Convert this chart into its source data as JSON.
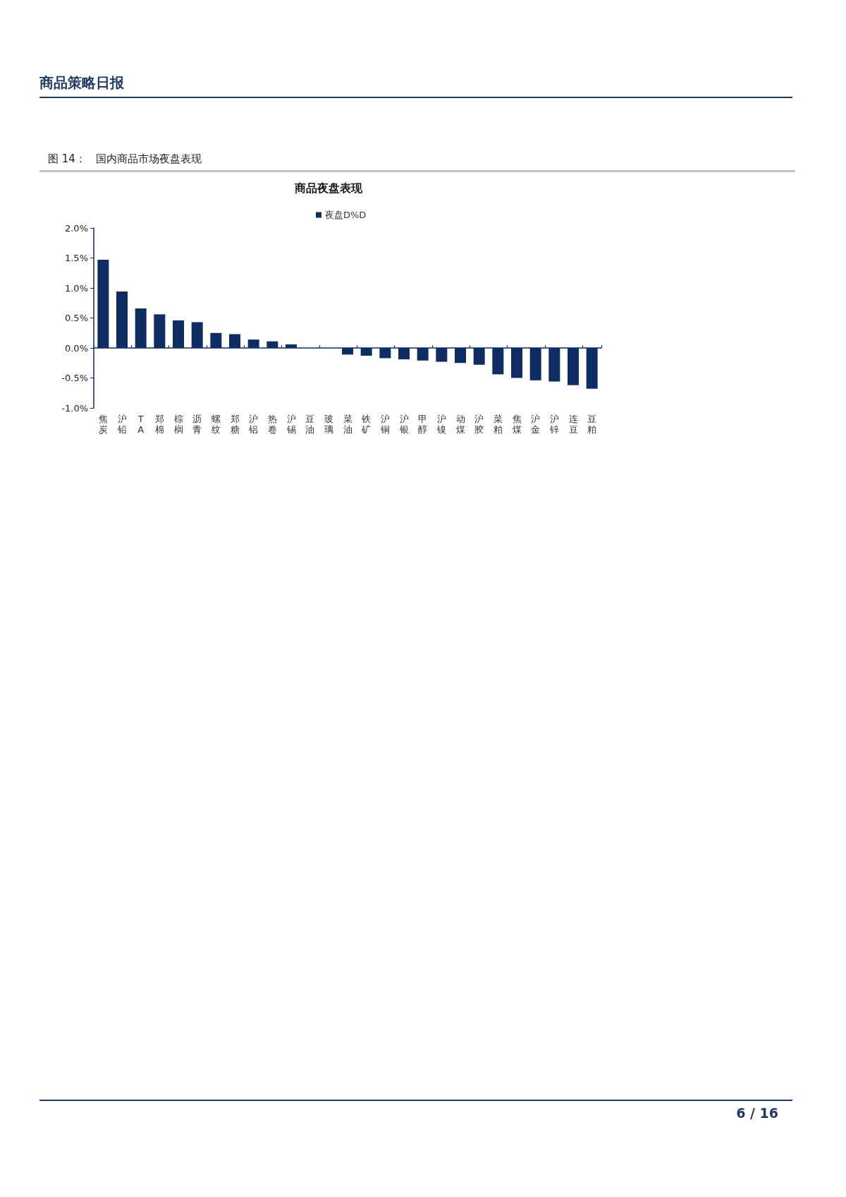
{
  "chart_data": {
    "type": "bar",
    "title": "商品夜盘表现",
    "categories": [
      "焦炭",
      "沪铅",
      "TA",
      "郑棉",
      "棕榈",
      "沥青",
      "螺纹",
      "郑糖",
      "沪铝",
      "热卷",
      "沪锡",
      "豆油",
      "玻璃",
      "菜油",
      "铁矿",
      "沪铜",
      "沪银",
      "甲醇",
      "沪镍",
      "动煤",
      "沪胶",
      "菜粕",
      "焦煤",
      "沪金",
      "沪锌",
      "连豆",
      "豆粕"
    ],
    "series": [
      {
        "name": "夜盘D%D",
        "color": "#0d2d63",
        "values": [
          1.47,
          0.94,
          0.66,
          0.56,
          0.46,
          0.43,
          0.25,
          0.23,
          0.14,
          0.11,
          0.06,
          0,
          0,
          -0.11,
          -0.13,
          -0.17,
          -0.19,
          -0.21,
          -0.23,
          -0.25,
          -0.28,
          -0.44,
          -0.5,
          -0.54,
          -0.56,
          -0.62,
          -0.68
        ]
      }
    ],
    "ylim": [
      -1,
      2
    ],
    "yticks": [
      {
        "value": -1,
        "label": "-1.0%"
      },
      {
        "value": -0.5,
        "label": "-0.5%"
      },
      {
        "value": 0,
        "label": "0.0%"
      },
      {
        "value": 0.5,
        "label": "0.5%"
      },
      {
        "value": 1,
        "label": "1.0%"
      },
      {
        "value": 1.5,
        "label": "1.5%"
      },
      {
        "value": 2,
        "label": "2.0%"
      }
    ],
    "grid": false,
    "legend": "top",
    "annotations": [
      "商品策略日报",
      "图 14：   国内商品市场夜盘表现",
      "6 / 16"
    ]
  }
}
